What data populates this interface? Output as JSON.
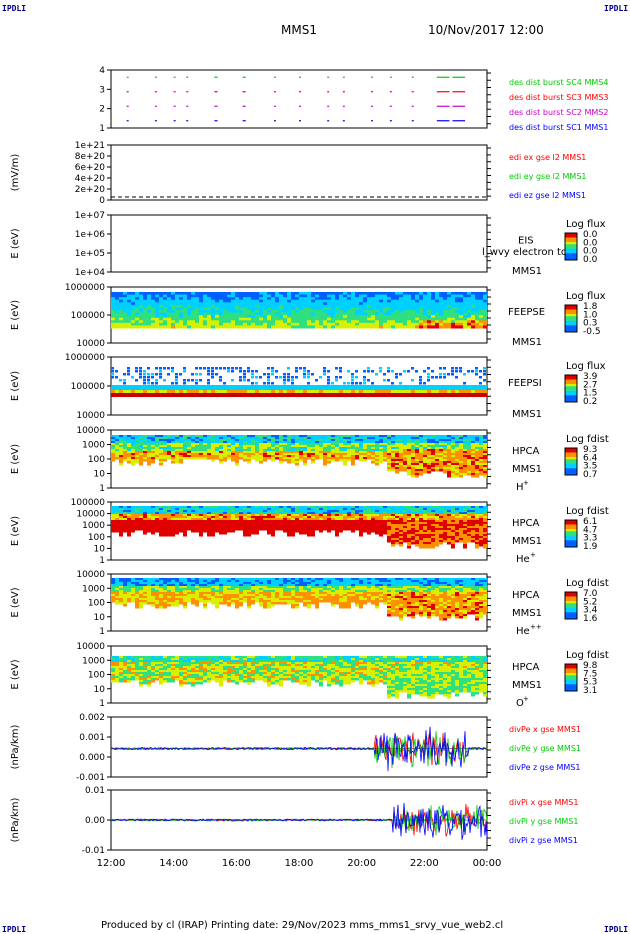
{
  "corner_label": "IPDLI",
  "header": {
    "spacecraft": "MMS1",
    "datetime": "10/Nov/2017 12:00"
  },
  "footer": {
    "text": "Produced by cl (IRAP)    Printing date: 29/Nov/2023    mms_mms1_srvy_vue_web2.cl"
  },
  "colors": {
    "red": "#ff0000",
    "green": "#00cc00",
    "blue": "#0000ff",
    "magenta": "#cc00cc"
  },
  "chart_data": {
    "type": "multi-panel time series",
    "x_range": [
      "12:00",
      "00:00"
    ],
    "x_ticks": [
      "12:00",
      "14:00",
      "16:00",
      "18:00",
      "20:00",
      "22:00",
      "00:00"
    ],
    "panels": [
      {
        "id": "burst",
        "type": "timeline",
        "ylim": [
          0.5,
          4.5
        ],
        "y_ticks": [
          "1",
          "2",
          "3",
          "4"
        ],
        "series": [
          {
            "name": "des dist burst SC1 MMS1",
            "y": 1,
            "color": "#0000ff"
          },
          {
            "name": "des dist burst SC2 MMS2",
            "y": 2,
            "color": "#cc00cc"
          },
          {
            "name": "des dist burst SC3 MMS3",
            "y": 3,
            "color": "#ff0000"
          },
          {
            "name": "des dist burst SC4 MMS4",
            "y": 4,
            "color": "#00cc00"
          }
        ],
        "segments_hours": [
          [
            12.5,
            12.55
          ],
          [
            13.4,
            13.45
          ],
          [
            14.0,
            14.05
          ],
          [
            14.4,
            14.45
          ],
          [
            15.3,
            15.4
          ],
          [
            16.2,
            16.3
          ],
          [
            17.2,
            17.25
          ],
          [
            18.0,
            18.05
          ],
          [
            18.9,
            18.95
          ],
          [
            19.4,
            19.45
          ],
          [
            20.3,
            20.35
          ],
          [
            20.9,
            20.95
          ],
          [
            21.6,
            21.65
          ],
          [
            22.4,
            22.8
          ],
          [
            22.9,
            23.3
          ]
        ]
      },
      {
        "id": "edi",
        "type": "line",
        "ylabel": "(mV/m)",
        "ylim": [
          0,
          1e+21
        ],
        "y_ticks": [
          "0",
          "2e+20",
          "4e+20",
          "6e+20",
          "8e+20",
          "1e+21"
        ],
        "series": [
          {
            "name": "edi ex gse l2 MMS1",
            "color": "#ff0000"
          },
          {
            "name": "edi ey gse l2 MMS1",
            "color": "#00cc00"
          },
          {
            "name": "edi ez gse l2 MMS1",
            "color": "#0000ff"
          }
        ],
        "values_note": "flat at 0"
      },
      {
        "id": "eis",
        "type": "spectrogram",
        "ylabel": "E (eV)",
        "y_ticks": [
          "1e+04",
          "1e+05",
          "1e+06",
          "1e+07"
        ],
        "labels": [
          "EIS",
          "MMS1"
        ],
        "overlay_text": "l_wvy electron to",
        "colorbar": {
          "title": "Log flux",
          "ticks": [
            "0.0",
            "0.0",
            "0.0",
            "0.0"
          ]
        }
      },
      {
        "id": "feepse",
        "type": "spectrogram",
        "ylabel": "E (eV)",
        "y_ticks": [
          "10000",
          "100000",
          "1000000"
        ],
        "labels": [
          "FEEPSE",
          "MMS1"
        ],
        "colorbar": {
          "title": "Log flux",
          "ticks": [
            "1.8",
            "1.0",
            "0.3",
            "-0.5"
          ]
        }
      },
      {
        "id": "feepsi",
        "type": "spectrogram",
        "ylabel": "E (eV)",
        "y_ticks": [
          "10000",
          "100000",
          "1000000"
        ],
        "labels": [
          "FEEPSI",
          "MMS1"
        ],
        "colorbar": {
          "title": "Log flux",
          "ticks": [
            "3.9",
            "2.7",
            "1.5",
            "0.2"
          ]
        }
      },
      {
        "id": "hpca_h",
        "type": "spectrogram",
        "ylabel": "E (eV)",
        "y_ticks": [
          "1",
          "10",
          "100",
          "1000",
          "10000"
        ],
        "labels": [
          "HPCA",
          "MMS1"
        ],
        "species": "H",
        "charge": "+",
        "colorbar": {
          "title": "Log fdist",
          "ticks": [
            "9.3",
            "6.4",
            "3.5",
            "0.7"
          ]
        }
      },
      {
        "id": "hpca_he1",
        "type": "spectrogram",
        "ylabel": "E (eV)",
        "y_ticks": [
          "1",
          "10",
          "100",
          "1000",
          "10000",
          "100000"
        ],
        "labels": [
          "HPCA",
          "MMS1"
        ],
        "species": "He",
        "charge": "+",
        "colorbar": {
          "title": "Log fdist",
          "ticks": [
            "6.1",
            "4.7",
            "3.3",
            "1.9"
          ]
        }
      },
      {
        "id": "hpca_he2",
        "type": "spectrogram",
        "ylabel": "E (eV)",
        "y_ticks": [
          "1",
          "10",
          "100",
          "1000",
          "10000"
        ],
        "labels": [
          "HPCA",
          "MMS1"
        ],
        "species": "He",
        "charge": "++",
        "colorbar": {
          "title": "Log fdist",
          "ticks": [
            "7.0",
            "5.2",
            "3.4",
            "1.6"
          ]
        }
      },
      {
        "id": "hpca_o",
        "type": "spectrogram",
        "ylabel": "E (eV)",
        "y_ticks": [
          "1",
          "10",
          "100",
          "1000",
          "10000"
        ],
        "labels": [
          "HPCA",
          "MMS1"
        ],
        "species": "O",
        "charge": "+",
        "colorbar": {
          "title": "Log fdist",
          "ticks": [
            "9.8",
            "7.5",
            "5.3",
            "3.1"
          ]
        }
      },
      {
        "id": "divpe",
        "type": "line",
        "ylabel": "(nPa/km)",
        "ylim": [
          -0.0018,
          0.002
        ],
        "y_ticks": [
          "-0.001",
          "0.000",
          "0.001",
          "0.002"
        ],
        "series": [
          {
            "name": "divPe x gse MMS1",
            "color": "#ff0000"
          },
          {
            "name": "divPe y gse MMS1",
            "color": "#00cc00"
          },
          {
            "name": "divPe z gse MMS1",
            "color": "#0000ff"
          }
        ],
        "activity_hours": [
          20.4,
          23.4
        ],
        "peak_abs": 0.0017
      },
      {
        "id": "divpi",
        "type": "line",
        "ylabel": "(nPa/km)",
        "ylim": [
          -0.014,
          0.014
        ],
        "y_ticks": [
          "-0.01",
          "0.00",
          "0.01"
        ],
        "series": [
          {
            "name": "divPi x gse MMS1",
            "color": "#ff0000"
          },
          {
            "name": "divPi y gse MMS1",
            "color": "#00cc00"
          },
          {
            "name": "divPi z gse MMS1",
            "color": "#0000ff"
          }
        ],
        "activity_hours": [
          21.0,
          24.0
        ],
        "peak_abs": 0.011
      }
    ]
  }
}
